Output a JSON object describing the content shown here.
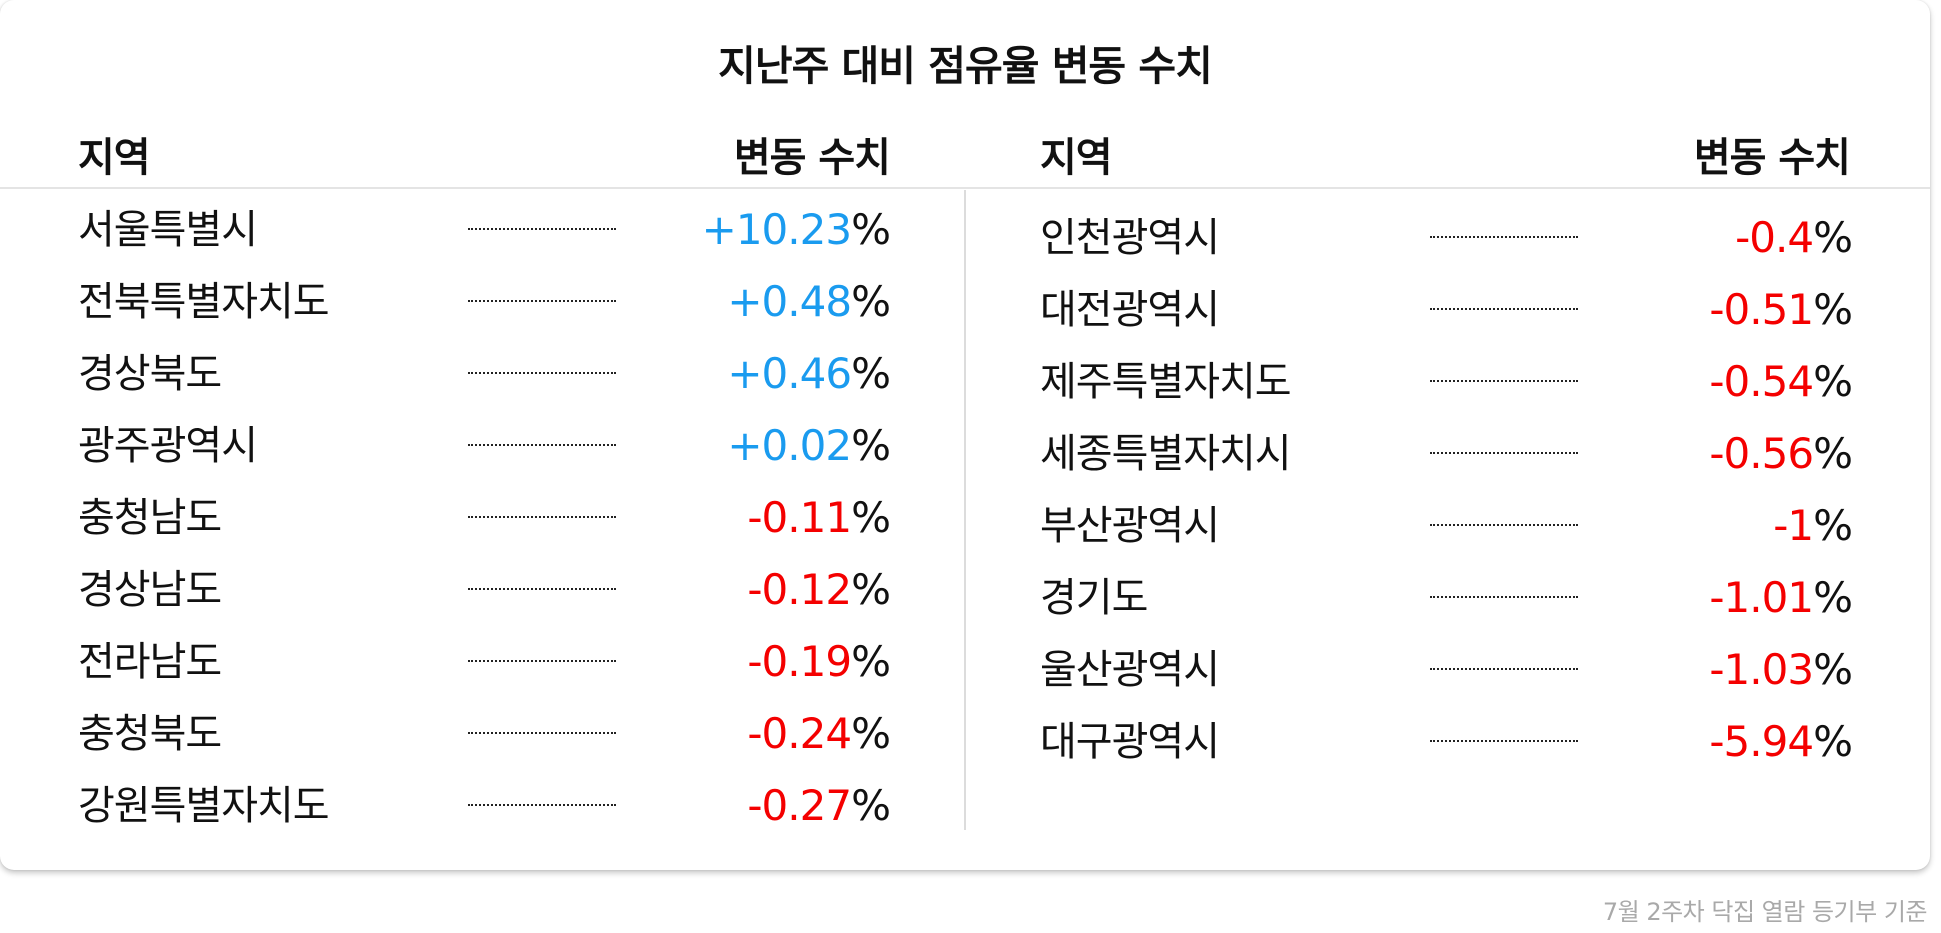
{
  "title": "지난주 대비 점유율 변동 수치",
  "headers": {
    "left": {
      "region": "지역",
      "change": "변동 수치"
    },
    "right": {
      "region": "지역",
      "change": "변동 수치"
    }
  },
  "colors": {
    "positive": "#1a9bef",
    "negative": "#f40000"
  },
  "chart_data": {
    "type": "table",
    "title": "지난주 대비 점유율 변동 수치",
    "columns": [
      "지역",
      "변동 수치"
    ],
    "unit": "%",
    "left_rows": [
      {
        "region": "서울특별시",
        "value": "+10.23",
        "unit": "%"
      },
      {
        "region": "전북특별자치도",
        "value": "+0.48",
        "unit": "%"
      },
      {
        "region": "경상북도",
        "value": "+0.46",
        "unit": "%"
      },
      {
        "region": "광주광역시",
        "value": "+0.02",
        "unit": "%"
      },
      {
        "region": "충청남도",
        "value": "-0.11",
        "unit": "%"
      },
      {
        "region": "경상남도",
        "value": "-0.12",
        "unit": "%"
      },
      {
        "region": "전라남도",
        "value": "-0.19",
        "unit": "%"
      },
      {
        "region": "충청북도",
        "value": "-0.24",
        "unit": "%"
      },
      {
        "region": "강원특별자치도",
        "value": "-0.27",
        "unit": "%"
      }
    ],
    "right_rows": [
      {
        "region": "인천광역시",
        "value": "-0.4",
        "unit": "%"
      },
      {
        "region": "대전광역시",
        "value": "-0.51",
        "unit": "%"
      },
      {
        "region": "제주특별자치도",
        "value": "-0.54",
        "unit": "%"
      },
      {
        "region": "세종특별자치시",
        "value": "-0.56",
        "unit": "%"
      },
      {
        "region": "부산광역시",
        "value": "-1",
        "unit": "%"
      },
      {
        "region": "경기도",
        "value": "-1.01",
        "unit": "%"
      },
      {
        "region": "울산광역시",
        "value": "-1.03",
        "unit": "%"
      },
      {
        "region": "대구광역시",
        "value": "-5.94",
        "unit": "%"
      }
    ]
  },
  "footnote": "7월 2주차 닥집 열람 등기부 기준"
}
